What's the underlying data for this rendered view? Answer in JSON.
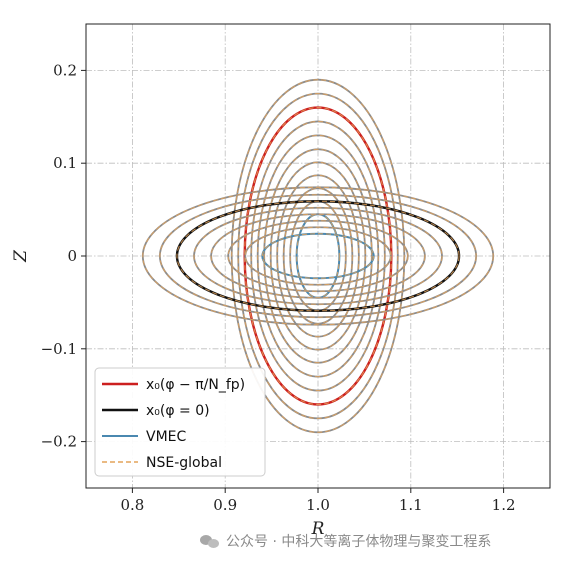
{
  "chart_data": {
    "type": "line",
    "xlabel": "R",
    "ylabel": "Z",
    "xlim": [
      0.75,
      1.25
    ],
    "ylim": [
      -0.25,
      0.25
    ],
    "xticks": [
      "0.8",
      "0.9",
      "1.0",
      "1.1",
      "1.2"
    ],
    "xtick_values": [
      0.8,
      0.9,
      1.0,
      1.1,
      1.2
    ],
    "yticks": [
      "−0.2",
      "−0.1",
      "0",
      "0.1",
      "0.2"
    ],
    "ytick_values": [
      -0.2,
      -0.1,
      0,
      0.1,
      0.2
    ],
    "grid": true,
    "legend_position": "lower-left",
    "center": [
      1.0,
      0.0
    ],
    "vertical_family": {
      "semi_axes_r": [
        0.023,
        0.03,
        0.037,
        0.044,
        0.051,
        0.058,
        0.065,
        0.072,
        0.079,
        0.086,
        0.093
      ],
      "semi_axes_z": [
        0.045,
        0.059,
        0.073,
        0.087,
        0.101,
        0.115,
        0.13,
        0.145,
        0.16,
        0.175,
        0.19
      ],
      "color": "#8c8c8c",
      "highlight_index": 8,
      "inner_vmec_index": 0
    },
    "horizontal_family": {
      "semi_axes_r": [
        0.06,
        0.0784,
        0.0968,
        0.1152,
        0.1336,
        0.152,
        0.1704,
        0.1888
      ],
      "semi_axes_z": [
        0.024,
        0.031,
        0.038,
        0.045,
        0.052,
        0.059,
        0.066,
        0.074
      ],
      "color": "#8c8c8c",
      "highlight_index": 5,
      "inner_vmec_index": 0
    },
    "series": [
      {
        "name": "x₀(φ − π/N_fp)",
        "color": "#cc1f1f",
        "style": "solid",
        "width": 2.4
      },
      {
        "name": "x₀(φ = 0)",
        "color": "#111111",
        "style": "solid",
        "width": 2.4
      },
      {
        "name": "VMEC",
        "color": "#4a88b0",
        "style": "solid",
        "width": 2
      },
      {
        "name": "NSE-global",
        "color": "#e3a35a",
        "style": "dashed",
        "width": 1.4
      }
    ]
  },
  "watermark": {
    "text": "公众号 · 中科大等离子体物理与聚变工程系",
    "icon": "wechat-icon"
  }
}
